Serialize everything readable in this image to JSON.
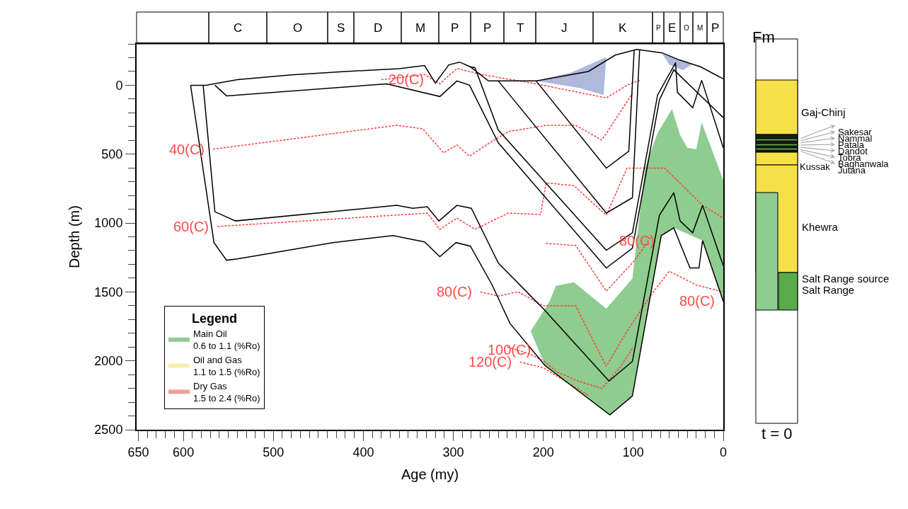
{
  "chart_data": [
    {
      "type": "line",
      "xlabel": "Age (my)",
      "ylabel": "Depth (m)",
      "legend_title": "Legend",
      "legend": "bottom left",
      "line_style": "solid",
      "marker": "none",
      "xlim": [
        652,
        0
      ],
      "xticks": [
        650,
        600,
        500,
        400,
        300,
        200,
        100,
        0
      ],
      "ylim": [
        2500,
        -300
      ],
      "yticks": [
        0,
        500,
        1000,
        1500,
        2000,
        2500
      ],
      "series": [
        {
          "type": "area",
          "name": "Main Oil\n0.6 to 1.1 (%Ro)",
          "color": "#8fcc8f",
          "x": [
            214,
            193,
            186,
            166,
            130,
            101,
            87,
            73,
            57,
            48,
            40,
            30,
            24,
            0,
            0,
            23,
            55,
            69,
            101,
            126,
            198,
            214
          ],
          "values": [
            1785,
            1568,
            1456,
            1430,
            1622,
            1403,
            602,
            346,
            173,
            362,
            454,
            464,
            270,
            689,
            1570,
            1127,
            1035,
            1091,
            2255,
            2392,
            2035,
            1785
          ]
        },
        {
          "type": "area",
          "name": "Oil and Gas\n1.1 to 1.5 (%Ro)",
          "color": "#f8eeaa"
        },
        {
          "type": "area",
          "name": "Dry Gas\n1.5 to 2.4 (%Ro)",
          "color": "#f0a09a"
        },
        {
          "type": "area",
          "color": "#b0b8dc",
          "x": [
            208,
            170,
            130,
            133,
            160,
            208
          ],
          "values": [
            -31,
            -90,
            -204,
            71,
            20,
            -31
          ]
        },
        {
          "type": "area",
          "color": "#b0b8dc",
          "x": [
            68,
            50,
            35,
            45,
            60,
            68
          ],
          "values": [
            -230,
            -190,
            -150,
            -110,
            -150,
            -230
          ]
        },
        {
          "color": "#ff3b3b",
          "line_style": "dotted",
          "x": [
            380,
            332,
            315,
            296,
            268,
            208,
            130,
            107,
            93
          ],
          "values": [
            -40,
            -77,
            -10,
            -122,
            -77,
            -10,
            92,
            0,
            -36
          ]
        },
        {
          "color": "#ff3b3b",
          "line_style": "dotted",
          "x": [
            567,
            363,
            334,
            311,
            296,
            282,
            262,
            239,
            197,
            164,
            135,
            120,
            101
          ],
          "values": [
            464,
            291,
            316,
            490,
            434,
            515,
            428,
            337,
            291,
            291,
            398,
            250,
            60
          ]
        },
        {
          "color": "#ff3b3b",
          "line_style": "dotted",
          "x": [
            562,
            329,
            315,
            296,
            276,
            239,
            203,
            197,
            166,
            130,
            107,
            65,
            23,
            0
          ],
          "values": [
            1025,
            928,
            1046,
            964,
            1046,
            928,
            938,
            709,
            729,
            944,
            602,
            602,
            872,
            964
          ]
        },
        {
          "color": "#ff3b3b",
          "line_style": "dotted",
          "x": [
            270,
            250,
            228,
            200,
            164,
            130,
            107,
            79,
            60,
            30,
            0
          ],
          "values": [
            1500,
            1530,
            1499,
            1601,
            1601,
            2040,
            1785,
            1510,
            1350,
            1450,
            1500
          ]
        },
        {
          "color": "#ff3b3b",
          "line_style": "dotted",
          "x": [
            197,
            164,
            130,
            99,
            80
          ],
          "values": [
            1148,
            1163,
            1494,
            1275,
            1100
          ]
        },
        {
          "color": "#ff3b3b",
          "line_style": "dotted",
          "x": [
            240,
            215,
            200,
            185,
            160,
            135,
            115,
            100
          ],
          "values": [
            1900,
            1950,
            2000,
            2080,
            2150,
            2200,
            2050,
            1900
          ]
        },
        {
          "color": "#ff3b3b",
          "line_style": "dotted",
          "x": [
            226,
            200,
            175,
            150
          ],
          "values": [
            2009,
            2050,
            2150,
            2250
          ]
        },
        {
          "color": "#000000",
          "x": [
            592,
            575,
            540,
            480,
            420,
            360,
            332,
            320,
            305,
            293,
            281,
            261,
            208,
            150,
            120,
            96,
            68,
            49,
            25,
            0
          ],
          "values": [
            0,
            0,
            -40,
            -75,
            -100,
            -120,
            -143,
            -15,
            -148,
            -168,
            -133,
            -31,
            -31,
            -100,
            -219,
            -260,
            -235,
            -184,
            -133,
            -46
          ]
        },
        {
          "color": "#000000",
          "x": [
            565,
            552,
            374,
            315,
            296,
            282,
            250,
            130,
            101,
            71,
            55,
            0
          ],
          "values": [
            0,
            77,
            -10,
            82,
            -31,
            0,
            418,
            1326,
            1183,
            107,
            -112,
            235
          ]
        },
        {
          "color": "#000000",
          "x": [
            281,
            276,
            250,
            130,
            101,
            73,
            53,
            51,
            34,
            24,
            0
          ],
          "values": [
            -133,
            -128,
            326,
            1198,
            1071,
            71,
            -163,
            51,
            163,
            -36,
            454
          ]
        },
        {
          "color": "#000000",
          "x": [
            208,
            130,
            105,
            99
          ],
          "values": [
            -31,
            602,
            479,
            -255
          ]
        },
        {
          "color": "#000000",
          "x": [
            250,
            130,
            101,
            93
          ],
          "values": [
            -31,
            928,
            816,
            -255
          ]
        },
        {
          "color": "#000000",
          "x": [
            578,
            565,
            542,
            363,
            345,
            329,
            316,
            296,
            280,
            250,
            200,
            127,
            101,
            71,
            55,
            48,
            34,
            23,
            0
          ],
          "values": [
            0,
            918,
            985,
            872,
            893,
            882,
            985,
            872,
            893,
            1290,
            1622,
            2147,
            2004,
            944,
            780,
            985,
            1071,
            872,
            1311
          ]
        },
        {
          "color": "#000000",
          "x": [
            592,
            566,
            552,
            540,
            434,
            367,
            332,
            315,
            297,
            281,
            257,
            237,
            198,
            126,
            101,
            69,
            55,
            37,
            27,
            23,
            0
          ],
          "values": [
            0,
            1142,
            1270,
            1260,
            1142,
            1091,
            1137,
            1244,
            1142,
            1168,
            1448,
            1729,
            2035,
            2392,
            2255,
            1091,
            1035,
            1326,
            1326,
            1127,
            1570
          ]
        }
      ],
      "annotations": [
        {
          "text": "20(C)",
          "x": 352,
          "y": -41
        },
        {
          "text": "40(C)",
          "x": 567,
          "y": 464
        },
        {
          "text": "60(C)",
          "x": 562,
          "y": 1025
        },
        {
          "text": "80(C)",
          "x": 270,
          "y": 1500
        },
        {
          "text": "100(C)",
          "x": 238,
          "y": 1918
        },
        {
          "text": "120(C)",
          "x": 226,
          "y": 2009
        },
        {
          "text": "80(C)",
          "x": 96,
          "y": 1127
        },
        {
          "text": "80(C)",
          "x": 0,
          "y": 1500
        }
      ]
    },
    {
      "type": "other",
      "categories": [
        null,
        "C",
        "O",
        "S",
        "D",
        "M",
        "P",
        "P",
        "T",
        "J",
        "K",
        "P",
        "E",
        "O",
        "M",
        "P"
      ]
    },
    {
      "type": "other",
      "title": "Fm",
      "annotations": [
        "Gaj-Chinj",
        "Sakesar",
        "Nammal",
        "Patala",
        "Dandot",
        "Tobra",
        "Baghanwala",
        "Jutana",
        "Kussak",
        "Khewra",
        "Salt Range source",
        "Salt Range",
        "t = 0"
      ]
    }
  ]
}
